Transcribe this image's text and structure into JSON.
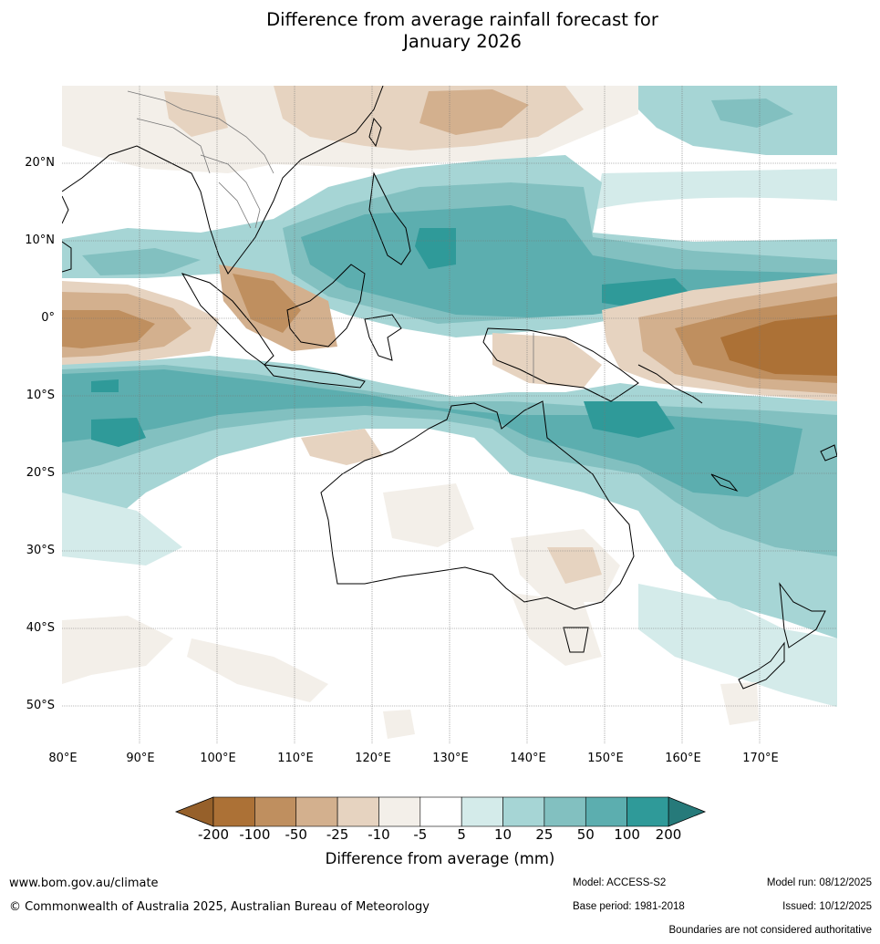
{
  "title_line1": "Difference from average rainfall forecast for",
  "title_line2": "January 2026",
  "latitude_labels": [
    "20°N",
    "10°N",
    "0°",
    "10°S",
    "20°S",
    "30°S",
    "40°S",
    "50°S"
  ],
  "longitude_labels": [
    "80°E",
    "90°E",
    "100°E",
    "110°E",
    "120°E",
    "130°E",
    "140°E",
    "150°E",
    "160°E",
    "170°E"
  ],
  "colorbar": {
    "ticks": [
      "-200",
      "-100",
      "-50",
      "-25",
      "-10",
      "-5",
      "5",
      "10",
      "25",
      "50",
      "100",
      "200"
    ],
    "colors": [
      "#ac7136",
      "#bf8f5f",
      "#d3b08e",
      "#e6d3c0",
      "#f3efe9",
      "#ffffff",
      "#d4ebea",
      "#a6d5d5",
      "#82c0c0",
      "#5caeaf",
      "#2f9a99"
    ],
    "low_extend_color": "#96602a",
    "high_extend_color": "#267a7a",
    "title": "Difference from average (mm)"
  },
  "footer": {
    "website": "www.bom.gov.au/climate",
    "copyright": "© Commonwealth of Australia 2025, Australian Bureau of Meteorology",
    "model": "Model: ACCESS-S2",
    "base_period": "Base period: 1981-2018",
    "model_run": "Model run: 08/12/2025",
    "issued": "Issued: 10/12/2025",
    "disclaimer": "Boundaries are not considered authoritative"
  }
}
